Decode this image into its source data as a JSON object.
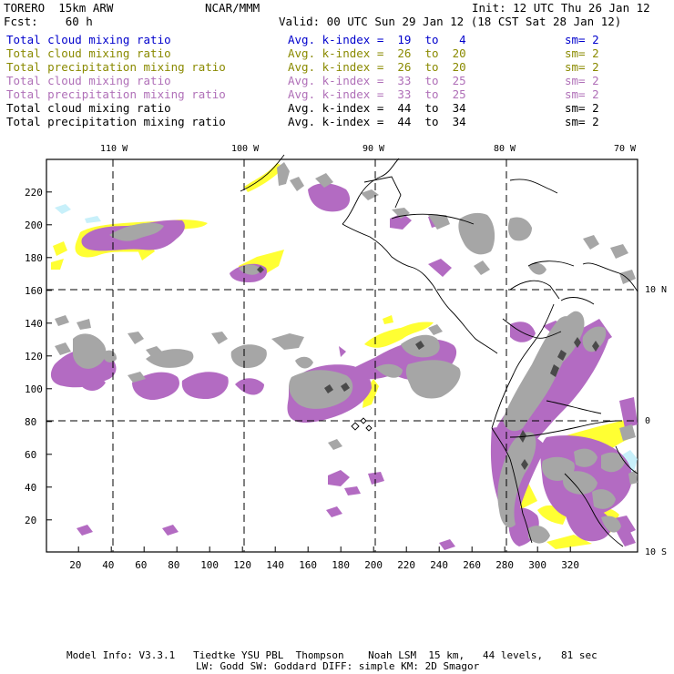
{
  "header": {
    "model": "TORERO  15km ARW",
    "center": "NCAR/MMM",
    "init": "Init: 12 UTC Thu 26 Jan 12",
    "fcst": "Fcst:    60 h",
    "valid": "Valid: 00 UTC Sun 29 Jan 12 (18 CST Sat 28 Jan 12)"
  },
  "legend": [
    {
      "name": "Total cloud mixing ratio",
      "kindex": "Avg. k-index =  19  to   4",
      "sm": "sm= 2",
      "color": "#0000cc"
    },
    {
      "name": "Total cloud mixing ratio",
      "kindex": "Avg. k-index =  26  to  20",
      "sm": "sm= 2",
      "color": "#8a8a00"
    },
    {
      "name": "Total precipitation mixing ratio",
      "kindex": "Avg. k-index =  26  to  20",
      "sm": "sm= 2",
      "color": "#8a8a00"
    },
    {
      "name": "Total cloud mixing ratio",
      "kindex": "Avg. k-index =  33  to  25",
      "sm": "sm= 2",
      "color": "#b070b8"
    },
    {
      "name": "Total precipitation mixing ratio",
      "kindex": "Avg. k-index =  33  to  25",
      "sm": "sm= 2",
      "color": "#b070b8"
    },
    {
      "name": "Total cloud mixing ratio",
      "kindex": "Avg. k-index =  44  to  34",
      "sm": "sm= 2",
      "color": "#000000"
    },
    {
      "name": "Total precipitation mixing ratio",
      "kindex": "Avg. k-index =  44  to  34",
      "sm": "sm= 2",
      "color": "#000000"
    }
  ],
  "map": {
    "lon_labels": [
      "110 W",
      "100 W",
      "90 W",
      "80 W",
      "70 W"
    ],
    "lat_labels": [
      "10 N",
      "0",
      "10 S"
    ],
    "x_ticks": [
      "20",
      "40",
      "60",
      "80",
      "100",
      "120",
      "140",
      "160",
      "180",
      "200",
      "220",
      "240",
      "260",
      "280",
      "300",
      "320"
    ],
    "y_ticks": [
      "20",
      "40",
      "60",
      "80",
      "100",
      "120",
      "140",
      "160",
      "180",
      "200",
      "220"
    ],
    "colors": {
      "magenta": "#b36bc2",
      "gray": "#a6a6a6",
      "dark": "#4a4a4a",
      "yellow": "#ffff33",
      "cyan": "#c8f0fa"
    }
  },
  "footer": {
    "line1": "Model Info: V3.3.1   Tiedtke YSU PBL  Thompson    Noah LSM  15 km,   44 levels,   81 sec",
    "line2": "LW: Godd SW: Goddard DIFF: simple KM: 2D Smagor"
  }
}
